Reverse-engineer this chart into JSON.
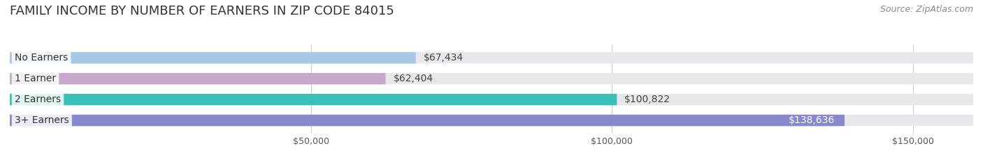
{
  "title": "FAMILY INCOME BY NUMBER OF EARNERS IN ZIP CODE 84015",
  "source": "Source: ZipAtlas.com",
  "categories": [
    "No Earners",
    "1 Earner",
    "2 Earners",
    "3+ Earners"
  ],
  "values": [
    67434,
    62404,
    100822,
    138636
  ],
  "bar_colors": [
    "#a8c8e8",
    "#c8a8cc",
    "#3bbfb8",
    "#8888cc"
  ],
  "bar_bg_color": "#eeeeee",
  "label_colors": [
    "#555555",
    "#555555",
    "#555555",
    "#ffffff"
  ],
  "xlim": [
    0,
    160000
  ],
  "xticks": [
    50000,
    100000,
    150000
  ],
  "xtick_labels": [
    "$50,000",
    "$100,000",
    "$150,000"
  ],
  "bg_color": "#ffffff",
  "bar_height": 0.55,
  "title_fontsize": 13,
  "source_fontsize": 9,
  "label_fontsize": 10,
  "cat_fontsize": 10,
  "value_fontsize": 10
}
